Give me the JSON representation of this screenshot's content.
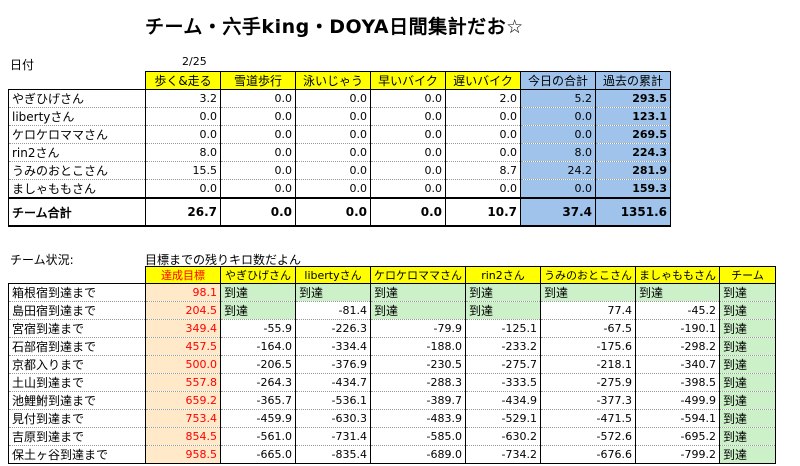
{
  "title": "チーム・六手king・DOYA日間集計だお☆",
  "date_label": "日付",
  "date_value": "2/25",
  "top_headers": [
    "歩く&走る",
    "雪道歩行",
    "泳いじゃう",
    "早いバイク",
    "遅いバイク",
    "今日の合計",
    "過去の累計"
  ],
  "top_rows": [
    {
      "name": "やぎひげさん",
      "vals": [
        "3.2",
        "0.0",
        "0.0",
        "0.0",
        "2.0",
        "5.2",
        "293.5"
      ]
    },
    {
      "name": "libertyさん",
      "vals": [
        "0.0",
        "0.0",
        "0.0",
        "0.0",
        "0.0",
        "0.0",
        "123.1"
      ]
    },
    {
      "name": "ケロケロママさん",
      "vals": [
        "0.0",
        "0.0",
        "0.0",
        "0.0",
        "0.0",
        "0.0",
        "269.5"
      ]
    },
    {
      "name": "rin2さん",
      "vals": [
        "8.0",
        "0.0",
        "0.0",
        "0.0",
        "0.0",
        "8.0",
        "224.3"
      ]
    },
    {
      "name": "うみのおとこさん",
      "vals": [
        "15.5",
        "0.0",
        "0.0",
        "0.0",
        "8.7",
        "24.2",
        "281.9"
      ]
    },
    {
      "name": "ましゃももさん",
      "vals": [
        "0.0",
        "0.0",
        "0.0",
        "0.0",
        "0.0",
        "0.0",
        "159.3"
      ]
    }
  ],
  "team_total": {
    "name": "チーム合計",
    "vals": [
      "26.7",
      "0.0",
      "0.0",
      "0.0",
      "10.7",
      "37.4",
      "1351.6"
    ]
  },
  "status_label": "チーム状況:",
  "status_note": "目標までの残りキロ数だよん",
  "bottom_headers": [
    "達成目標",
    "やぎひげさん",
    "libertyさん",
    "ケロケロママさん",
    "rin2さん",
    "うみのおとこさん",
    "ましゃももさん",
    "チーム"
  ],
  "bottom_rows": [
    {
      "name": "箱根宿到達まで",
      "goal": "98.1",
      "vals": [
        "到達",
        "到達",
        "到達",
        "到達",
        "到達",
        "到達",
        "到達"
      ]
    },
    {
      "name": "島田宿到達まで",
      "goal": "204.5",
      "vals": [
        "到達",
        "-81.4",
        "到達",
        "到達",
        "77.4",
        "-45.2",
        "到達"
      ]
    },
    {
      "name": "宮宿到達まで",
      "goal": "349.4",
      "vals": [
        "-55.9",
        "-226.3",
        "-79.9",
        "-125.1",
        "-67.5",
        "-190.1",
        "到達"
      ]
    },
    {
      "name": "石部宿到達まで",
      "goal": "457.5",
      "vals": [
        "-164.0",
        "-334.4",
        "-188.0",
        "-233.2",
        "-175.6",
        "-298.2",
        "到達"
      ]
    },
    {
      "name": "京都入りまで",
      "goal": "500.0",
      "vals": [
        "-206.5",
        "-376.9",
        "-230.5",
        "-275.7",
        "-218.1",
        "-340.7",
        "到達"
      ]
    },
    {
      "name": "土山到達まで",
      "goal": "557.8",
      "vals": [
        "-264.3",
        "-434.7",
        "-288.3",
        "-333.5",
        "-275.9",
        "-398.5",
        "到達"
      ]
    },
    {
      "name": "池鯉鮒到達まで",
      "goal": "659.2",
      "vals": [
        "-365.7",
        "-536.1",
        "-389.7",
        "-434.9",
        "-377.3",
        "-499.9",
        "到達"
      ]
    },
    {
      "name": "見付到達まで",
      "goal": "753.4",
      "vals": [
        "-459.9",
        "-630.3",
        "-483.9",
        "-529.1",
        "-471.5",
        "-594.1",
        "到達"
      ]
    },
    {
      "name": "吉原到達まで",
      "goal": "854.5",
      "vals": [
        "-561.0",
        "-731.4",
        "-585.0",
        "-630.2",
        "-572.6",
        "-695.2",
        "到達"
      ]
    },
    {
      "name": "保土ヶ谷到達まで",
      "goal": "958.5",
      "vals": [
        "-665.0",
        "-835.4",
        "-689.0",
        "-734.2",
        "-676.6",
        "-799.2",
        "到達"
      ]
    }
  ]
}
